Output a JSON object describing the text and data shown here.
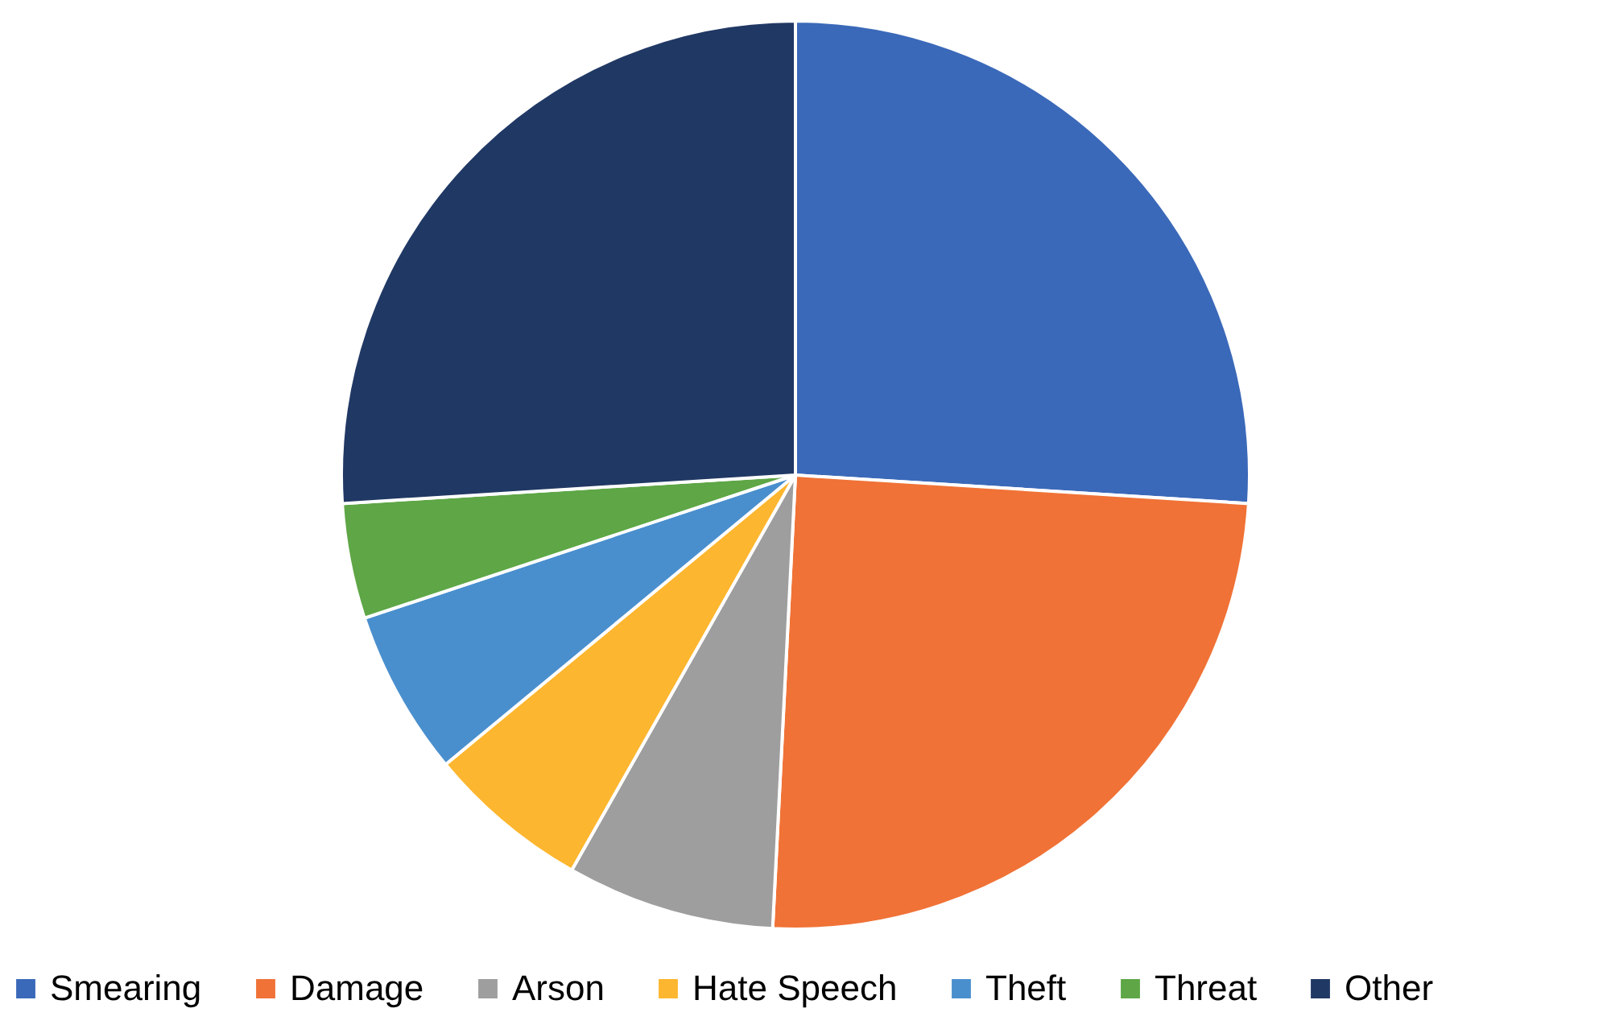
{
  "chart_data": {
    "type": "pie",
    "categories": [
      "Smearing",
      "Damage",
      "Arson",
      "Hate Speech",
      "Theft",
      "Threat",
      "Other"
    ],
    "values": [
      26,
      24.8,
      7.4,
      5.8,
      5.9,
      4.1,
      26
    ],
    "colors": [
      "#3b69b9",
      "#f07236",
      "#9e9e9e",
      "#fdb62f",
      "#4a8fcd",
      "#5ea646",
      "#203864"
    ],
    "legend": "bottom"
  }
}
